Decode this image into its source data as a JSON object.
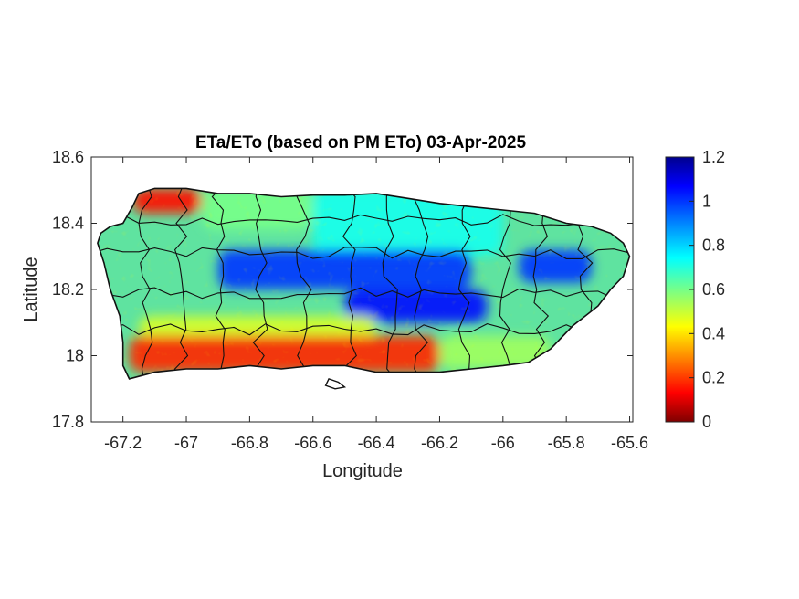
{
  "chart_data": {
    "type": "heatmap",
    "title": "ETa/ETo (based on PM ETo) 03-Apr-2025",
    "xlabel": "Longitude",
    "ylabel": "Latitude",
    "xlim": [
      -67.3,
      -65.59
    ],
    "ylim": [
      17.8,
      18.6
    ],
    "xticks": [
      -67.2,
      -67,
      -66.8,
      -66.6,
      -66.4,
      -66.2,
      -66,
      -65.8,
      -65.6
    ],
    "xtick_labels": [
      "-67.2",
      "-67",
      "-66.8",
      "-66.6",
      "-66.4",
      "-66.2",
      "-66",
      "-65.8",
      "-65.6"
    ],
    "yticks": [
      17.8,
      18,
      18.2,
      18.4,
      18.6
    ],
    "ytick_labels": [
      "17.8",
      "18",
      "18.2",
      "18.4",
      "18.6"
    ],
    "colorbar": {
      "colormap": "jet",
      "range": [
        0,
        1.2
      ],
      "ticks": [
        0,
        0.2,
        0.4,
        0.6,
        0.8,
        1,
        1.2
      ],
      "tick_labels": [
        "0",
        "0.2",
        "0.4",
        "0.6",
        "0.8",
        "1",
        "1.2"
      ]
    },
    "grid": false,
    "legend": "none",
    "island_outline": [
      [
        -67.27,
        18.37
      ],
      [
        -67.24,
        18.39
      ],
      [
        -67.2,
        18.4
      ],
      [
        -67.17,
        18.45
      ],
      [
        -67.15,
        18.49
      ],
      [
        -67.1,
        18.505
      ],
      [
        -67.0,
        18.505
      ],
      [
        -66.9,
        18.49
      ],
      [
        -66.8,
        18.49
      ],
      [
        -66.7,
        18.48
      ],
      [
        -66.6,
        18.485
      ],
      [
        -66.5,
        18.485
      ],
      [
        -66.4,
        18.49
      ],
      [
        -66.3,
        18.475
      ],
      [
        -66.2,
        18.46
      ],
      [
        -66.1,
        18.45
      ],
      [
        -66.0,
        18.44
      ],
      [
        -65.9,
        18.43
      ],
      [
        -65.8,
        18.4
      ],
      [
        -65.72,
        18.39
      ],
      [
        -65.66,
        18.37
      ],
      [
        -65.62,
        18.34
      ],
      [
        -65.6,
        18.3
      ],
      [
        -65.62,
        18.24
      ],
      [
        -65.66,
        18.2
      ],
      [
        -65.7,
        18.15
      ],
      [
        -65.78,
        18.09
      ],
      [
        -65.85,
        18.02
      ],
      [
        -65.92,
        17.98
      ],
      [
        -66.0,
        17.97
      ],
      [
        -66.1,
        17.96
      ],
      [
        -66.2,
        17.95
      ],
      [
        -66.3,
        17.95
      ],
      [
        -66.4,
        17.95
      ],
      [
        -66.5,
        17.97
      ],
      [
        -66.6,
        17.97
      ],
      [
        -66.7,
        17.96
      ],
      [
        -66.8,
        17.97
      ],
      [
        -66.9,
        17.96
      ],
      [
        -67.0,
        17.96
      ],
      [
        -67.1,
        17.95
      ],
      [
        -67.18,
        17.93
      ],
      [
        -67.2,
        17.97
      ],
      [
        -67.2,
        18.04
      ],
      [
        -67.21,
        18.12
      ],
      [
        -67.24,
        18.2
      ],
      [
        -67.26,
        18.28
      ],
      [
        -67.28,
        18.34
      ]
    ],
    "south_islet": [
      [
        -66.55,
        17.93
      ],
      [
        -66.52,
        17.92
      ],
      [
        -66.5,
        17.905
      ],
      [
        -66.53,
        17.9
      ],
      [
        -66.56,
        17.91
      ]
    ],
    "value_bands": [
      {
        "lat": [
          18.43,
          18.505
        ],
        "lon": [
          -67.17,
          -66.95
        ],
        "value": 0.15
      },
      {
        "lat": [
          18.38,
          18.505
        ],
        "lon": [
          -66.95,
          -66.6
        ],
        "value": 0.6
      },
      {
        "lat": [
          18.3,
          18.505
        ],
        "lon": [
          -66.6,
          -66.0
        ],
        "value": 0.72
      },
      {
        "lat": [
          18.2,
          18.32
        ],
        "lon": [
          -66.9,
          -66.1
        ],
        "value": 1.0
      },
      {
        "lat": [
          18.1,
          18.2
        ],
        "lon": [
          -66.5,
          -66.05
        ],
        "value": 1.05
      },
      {
        "lat": [
          18.22,
          18.32
        ],
        "lon": [
          -65.95,
          -65.72
        ],
        "value": 1.0
      },
      {
        "lat": [
          18.05,
          18.12
        ],
        "lon": [
          -67.15,
          -66.4
        ],
        "value": 0.48
      },
      {
        "lat": [
          17.95,
          18.06
        ],
        "lon": [
          -67.18,
          -66.2
        ],
        "value": 0.18
      },
      {
        "lat": [
          17.96,
          18.06
        ],
        "lon": [
          -66.2,
          -65.85
        ],
        "value": 0.55
      }
    ]
  }
}
